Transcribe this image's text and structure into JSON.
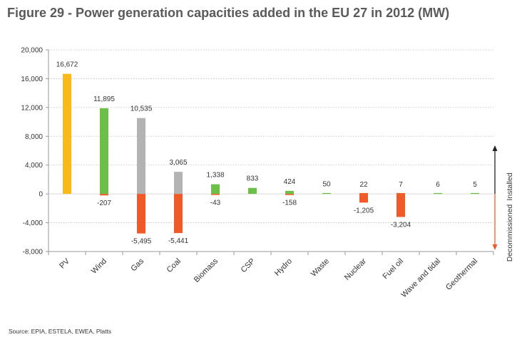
{
  "title": "Figure 29 - Power generation capacities added in the EU 27 in 2012 (MW)",
  "source": "Source: EPIA, ESTELA, EWEA, Platts",
  "legend": {
    "installed": "Installed",
    "decommissioned": "Decommissioned"
  },
  "colors": {
    "pv": "#f9b919",
    "renewable": "#6cc04a",
    "gas": "#b3b3b3",
    "decommissioned": "#f05a28",
    "grid": "#bdbdbd",
    "axis": "#999999",
    "arrow_up": "#222222",
    "arrow_down": "#f05a28"
  },
  "chart_data": {
    "type": "bar",
    "title": "Figure 29 - Power generation capacities added in the EU 27 in 2012 (MW)",
    "xlabel": "",
    "ylabel": "",
    "ylim": [
      -8000,
      20000
    ],
    "yticks": [
      "20,000",
      "16,000",
      "12,000",
      "8,000",
      "4,000",
      "0",
      "-4,000",
      "-8,000"
    ],
    "ytick_values": [
      20000,
      16000,
      12000,
      8000,
      4000,
      0,
      -4000,
      -8000
    ],
    "categories": [
      "PV",
      "Wind",
      "Gas",
      "Coal",
      "Biomass",
      "CSP",
      "Hydro",
      "Waste",
      "Nuclear",
      "Fuel oil",
      "Wave and tidal",
      "Geothermal"
    ],
    "series": [
      {
        "name": "Installed",
        "values": [
          16672,
          11895,
          10535,
          3065,
          1338,
          833,
          424,
          50,
          22,
          7,
          6,
          5
        ],
        "labels": [
          "16,672",
          "11,895",
          "10,535",
          "3,065",
          "1,338",
          "833",
          "424",
          "50",
          "22",
          "7",
          "6",
          "5"
        ],
        "colors": [
          "#f9b919",
          "#6cc04a",
          "#b3b3b3",
          "#b3b3b3",
          "#6cc04a",
          "#6cc04a",
          "#6cc04a",
          "#6cc04a",
          "#f05a28",
          "#f05a28",
          "#6cc04a",
          "#6cc04a"
        ]
      },
      {
        "name": "Decommissioned",
        "values": [
          0,
          -207,
          -5495,
          -5441,
          -43,
          0,
          -158,
          0,
          -1205,
          -3204,
          0,
          0
        ],
        "labels": [
          "",
          "-207",
          "-5,495",
          "-5,441",
          "-43",
          "",
          "-158",
          "",
          "-1,205",
          "-3,204",
          "",
          ""
        ],
        "colors": "#f05a28"
      }
    ],
    "grid": true,
    "legend_position": "right"
  }
}
